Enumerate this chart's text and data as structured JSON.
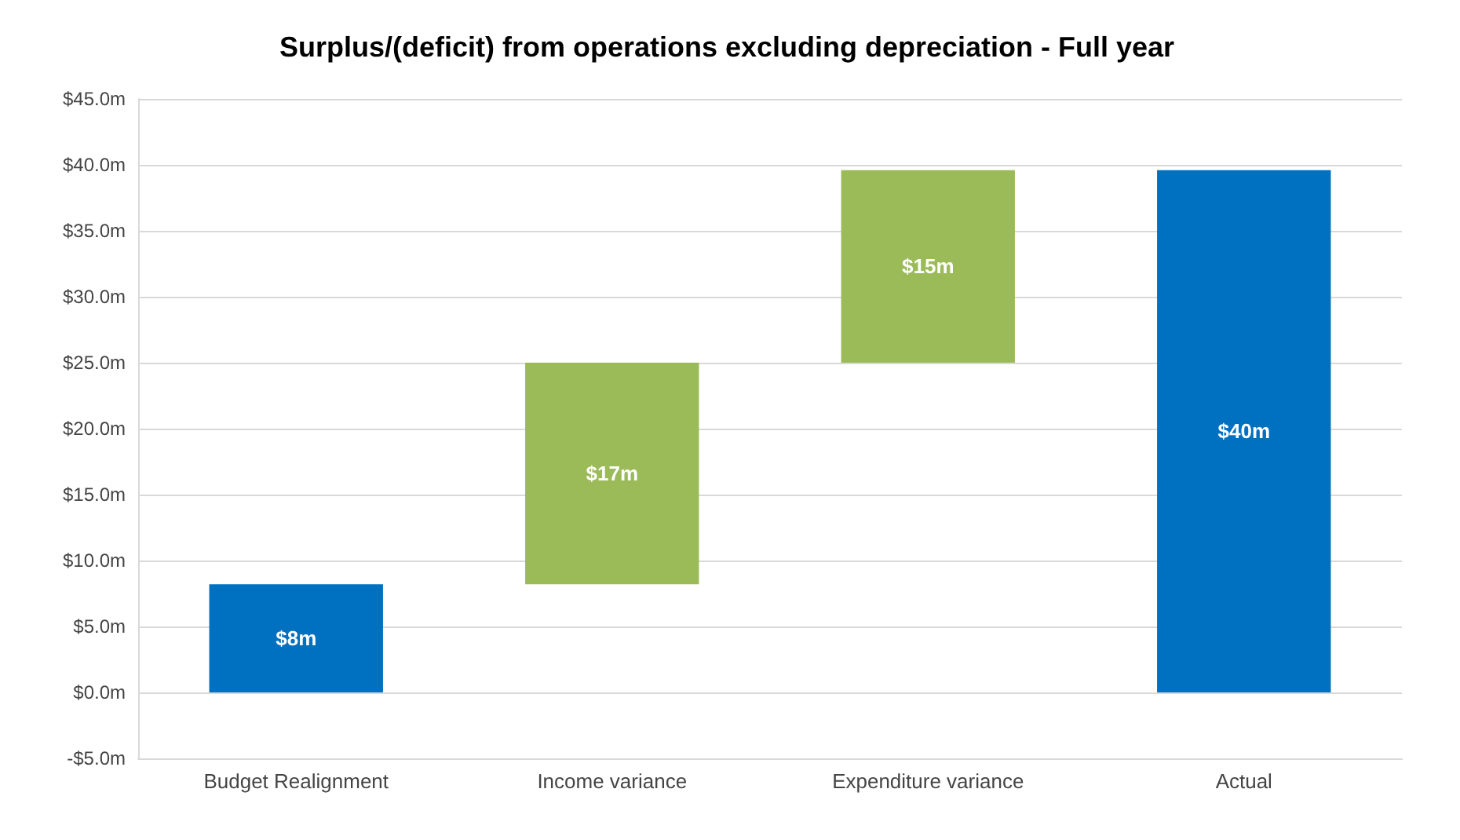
{
  "chart_data": {
    "type": "bar",
    "title": "Surplus/(deficit) from operations excluding depreciation - Full year",
    "categories": [
      "Budget Realignment",
      "Income variance",
      "Expenditure variance",
      "Actual"
    ],
    "values": [
      8.2,
      16.8,
      14.6,
      39.6
    ],
    "base": [
      0,
      8.2,
      25,
      0
    ],
    "colors": [
      "#0070c0",
      "#9bbb59",
      "#9bbb59",
      "#0070c0"
    ],
    "value_labels": [
      "$8m",
      "$17m",
      "$15m",
      "$40m"
    ],
    "ylim": [
      -5,
      45
    ],
    "yticks": [
      {
        "value": -5,
        "label": "-$5.0m"
      },
      {
        "value": 0,
        "label": "$0.0m"
      },
      {
        "value": 5,
        "label": "$5.0m"
      },
      {
        "value": 10,
        "label": "$10.0m"
      },
      {
        "value": 15,
        "label": "$15.0m"
      },
      {
        "value": 20,
        "label": "$20.0m"
      },
      {
        "value": 25,
        "label": "$25.0m"
      },
      {
        "value": 30,
        "label": "$30.0m"
      },
      {
        "value": 35,
        "label": "$35.0m"
      },
      {
        "value": 40,
        "label": "$40.0m"
      },
      {
        "value": 45,
        "label": "$45.0m"
      }
    ],
    "grid": true
  }
}
